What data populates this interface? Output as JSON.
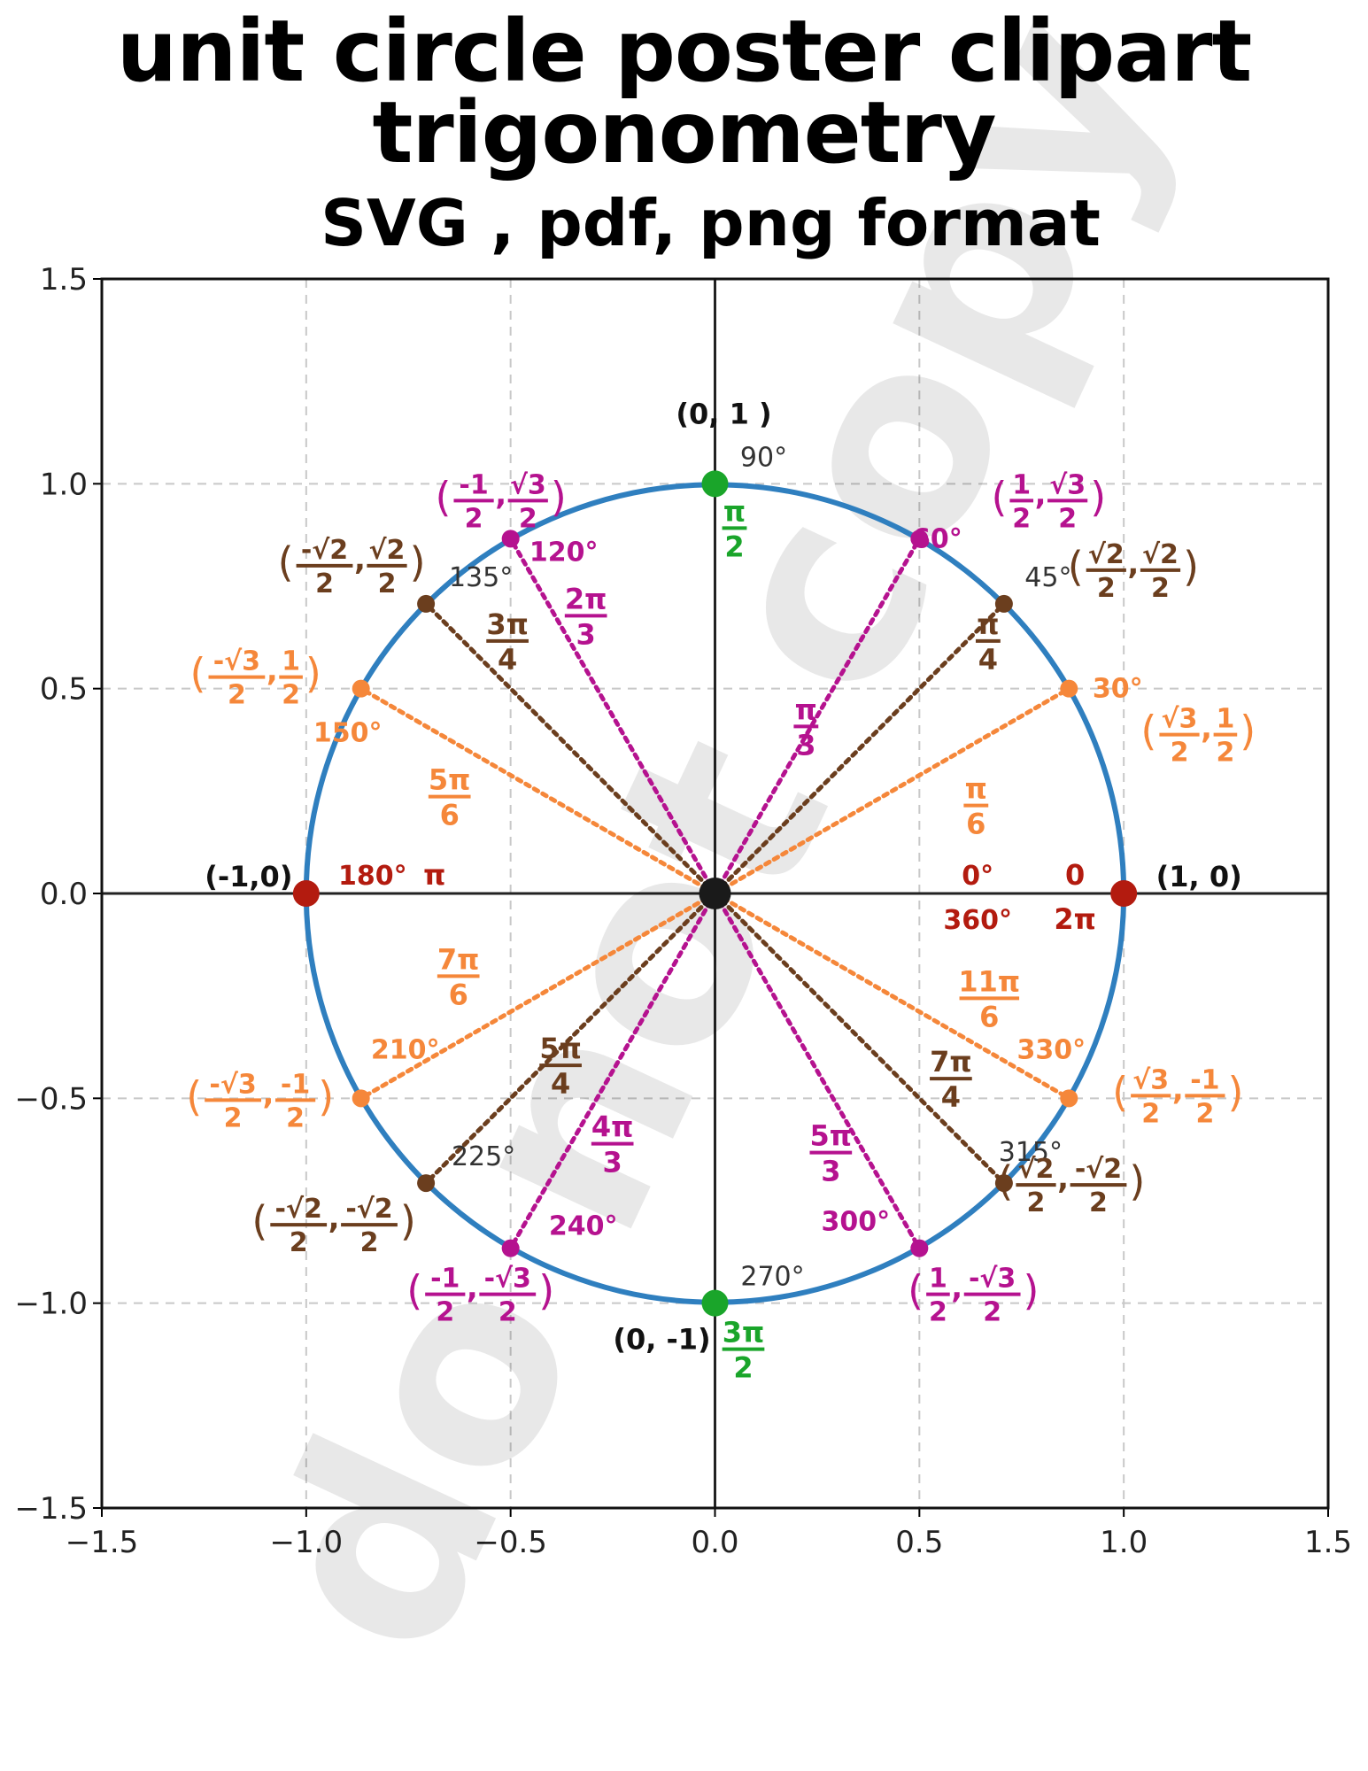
{
  "title": {
    "line1": "unit circle poster clipart",
    "line2": "trigonometry",
    "line3": "SVG , pdf, png format"
  },
  "watermark": "do not copy",
  "colors": {
    "circle": "#2f7fbf",
    "axis": "#222222",
    "grid": "#c8c8c8",
    "red": "#b31b0f",
    "green": "#1aa52a",
    "magenta": "#b5128f",
    "brown": "#6b3e1e",
    "orange": "#f5873a",
    "gray": "#333333",
    "center": "#1a1a1a"
  },
  "chart_data": {
    "type": "scatter",
    "title": "",
    "xlabel": "",
    "ylabel": "",
    "xlim": [
      -1.5,
      1.5
    ],
    "ylim": [
      -1.5,
      1.5
    ],
    "grid": true,
    "xticks": [
      "−1.5",
      "−1.0",
      "−0.5",
      "0.0",
      "0.5",
      "1.0",
      "1.5"
    ],
    "yticks": [
      "−1.5",
      "−1.0",
      "−0.5",
      "0.0",
      "0.5",
      "1.0",
      "1.5"
    ],
    "series": [
      {
        "name": "unit circle",
        "kind": "circle",
        "radius": 1
      },
      {
        "name": "angles",
        "kind": "points",
        "angles_deg": [
          0,
          30,
          45,
          60,
          90,
          120,
          135,
          150,
          180,
          210,
          225,
          240,
          270,
          300,
          315,
          330
        ]
      }
    ],
    "points": [
      {
        "deg": 0,
        "x": 1,
        "y": 0,
        "color": "red",
        "size": "large",
        "degree_label": "0°",
        "degree2": "360°",
        "rad": "0",
        "rad2": "2π",
        "coord_text": "(1, 0)"
      },
      {
        "deg": 30,
        "x": 0.866,
        "y": 0.5,
        "color": "orange",
        "degree_label": "30°",
        "rad_num": "π",
        "rad_den": "6",
        "coord": {
          "xn": "√3",
          "xd": "2",
          "yn": "1",
          "yd": "2"
        }
      },
      {
        "deg": 45,
        "x": 0.707,
        "y": 0.707,
        "color": "brown",
        "degree_label": "45°",
        "rad_num": "π",
        "rad_den": "4",
        "coord": {
          "xn": "√2",
          "xd": "2",
          "yn": "√2",
          "yd": "2"
        }
      },
      {
        "deg": 60,
        "x": 0.5,
        "y": 0.866,
        "color": "magenta",
        "degree_label": "60°",
        "rad_num": "π",
        "rad_den": "3",
        "coord": {
          "xn": "1",
          "xd": "2",
          "yn": "√3",
          "yd": "2"
        }
      },
      {
        "deg": 90,
        "x": 0,
        "y": 1,
        "color": "green",
        "size": "large",
        "degree_label": "90°",
        "rad_num": "π",
        "rad_den": "2",
        "coord_text": "(0, 1 )"
      },
      {
        "deg": 120,
        "x": -0.5,
        "y": 0.866,
        "color": "magenta",
        "degree_label": "120°",
        "rad_num": "2π",
        "rad_den": "3",
        "coord": {
          "xn": "-1",
          "xd": "2",
          "yn": "√3",
          "yd": "2"
        }
      },
      {
        "deg": 135,
        "x": -0.707,
        "y": 0.707,
        "color": "brown",
        "degree_label": "135°",
        "rad_num": "3π",
        "rad_den": "4",
        "coord": {
          "xn": "-√2",
          "xd": "2",
          "yn": "√2",
          "yd": "2"
        }
      },
      {
        "deg": 150,
        "x": -0.866,
        "y": 0.5,
        "color": "orange",
        "degree_label": "150°",
        "rad_num": "5π",
        "rad_den": "6",
        "coord": {
          "xn": "-√3",
          "xd": "2",
          "yn": "1",
          "yd": "2"
        }
      },
      {
        "deg": 180,
        "x": -1,
        "y": 0,
        "color": "red",
        "size": "large",
        "degree_label": "180°",
        "rad": "π",
        "coord_text": "(-1,0)"
      },
      {
        "deg": 210,
        "x": -0.866,
        "y": -0.5,
        "color": "orange",
        "degree_label": "210°",
        "rad_num": "7π",
        "rad_den": "6",
        "coord": {
          "xn": "-√3",
          "xd": "2",
          "yn": "-1",
          "yd": "2"
        }
      },
      {
        "deg": 225,
        "x": -0.707,
        "y": -0.707,
        "color": "brown",
        "degree_label": "225°",
        "rad_num": "5π",
        "rad_den": "4",
        "coord": {
          "xn": "-√2",
          "xd": "2",
          "yn": "-√2",
          "yd": "2"
        }
      },
      {
        "deg": 240,
        "x": -0.5,
        "y": -0.866,
        "color": "magenta",
        "degree_label": "240°",
        "rad_num": "4π",
        "rad_den": "3",
        "coord": {
          "xn": "-1",
          "xd": "2",
          "yn": "-√3",
          "yd": "2"
        }
      },
      {
        "deg": 270,
        "x": 0,
        "y": -1,
        "color": "green",
        "size": "large",
        "degree_label": "270°",
        "rad_num": "3π",
        "rad_den": "2",
        "coord_text": "(0, -1)"
      },
      {
        "deg": 300,
        "x": 0.5,
        "y": -0.866,
        "color": "magenta",
        "degree_label": "300°",
        "rad_num": "5π",
        "rad_den": "3",
        "coord": {
          "xn": "1",
          "xd": "2",
          "yn": "-√3",
          "yd": "2"
        }
      },
      {
        "deg": 315,
        "x": 0.707,
        "y": -0.707,
        "color": "brown",
        "degree_label": "315°",
        "rad_num": "7π",
        "rad_den": "4",
        "coord": {
          "xn": "√2",
          "xd": "2",
          "yn": "-√2",
          "yd": "2"
        }
      },
      {
        "deg": 330,
        "x": 0.866,
        "y": -0.5,
        "color": "orange",
        "degree_label": "330°",
        "rad_num": "11π",
        "rad_den": "6",
        "coord": {
          "xn": "√3",
          "xd": "2",
          "yn": "-1",
          "yd": "2"
        }
      }
    ]
  }
}
